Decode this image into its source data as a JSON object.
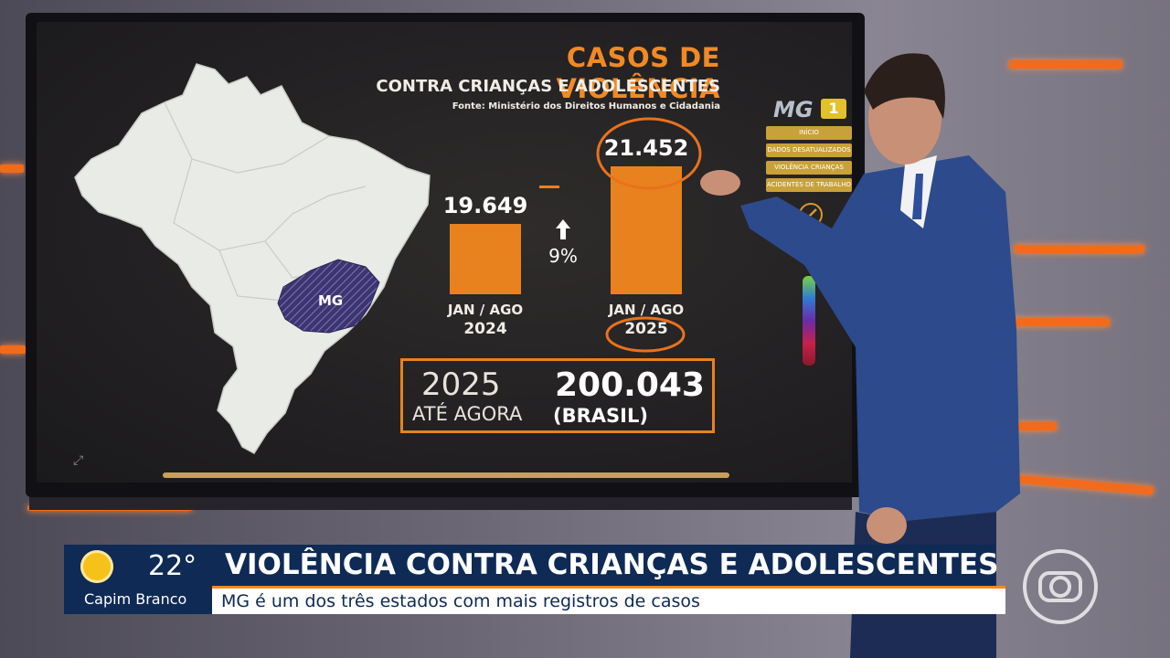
{
  "chart_data": {
    "type": "bar",
    "title": "CASOS DE VIOLÊNCIA",
    "subtitle": "CONTRA CRIANÇAS E ADOLESCENTES",
    "source": "Fonte: Ministério dos Direitos Humanos e Cidadania",
    "categories": [
      "JAN / AGO 2024",
      "JAN / AGO 2025"
    ],
    "category_periods": [
      "JAN / AGO",
      "JAN / AGO"
    ],
    "category_years": [
      "2024",
      "2025"
    ],
    "values": [
      19649,
      21452
    ],
    "value_labels": [
      "19.649",
      "21.452"
    ],
    "growth_label": "9%",
    "map_label": "MG",
    "total": {
      "year": "2025",
      "label": "ATÉ AGORA",
      "value": "200.043",
      "scope": "(BRASIL)"
    },
    "colors": {
      "bar": "#e8821e",
      "title": "#f08a24",
      "highlight_map": "#3c3570"
    }
  },
  "screen_ui": {
    "logo_text": "MG",
    "logo_badge": "1",
    "menu": [
      "INÍCIO",
      "DADOS DESATUALIZADOS",
      "VIOLÊNCIA CRIANÇAS",
      "ACIDENTES DE TRABALHO"
    ]
  },
  "lower_third": {
    "temperature": "22°",
    "city": "Capim Branco",
    "headline": "VIOLÊNCIA CONTRA CRIANÇAS E ADOLESCENTES",
    "subheadline": "MG é um dos três estados com mais registros de casos",
    "colors": {
      "bar_bg": "#0f2a54",
      "accent": "#f08a24"
    }
  },
  "icons": [
    "weather-sun-icon",
    "globo-logo-icon",
    "up-arrow-icon",
    "pen-tool-icon",
    "corner-expand-icon"
  ]
}
